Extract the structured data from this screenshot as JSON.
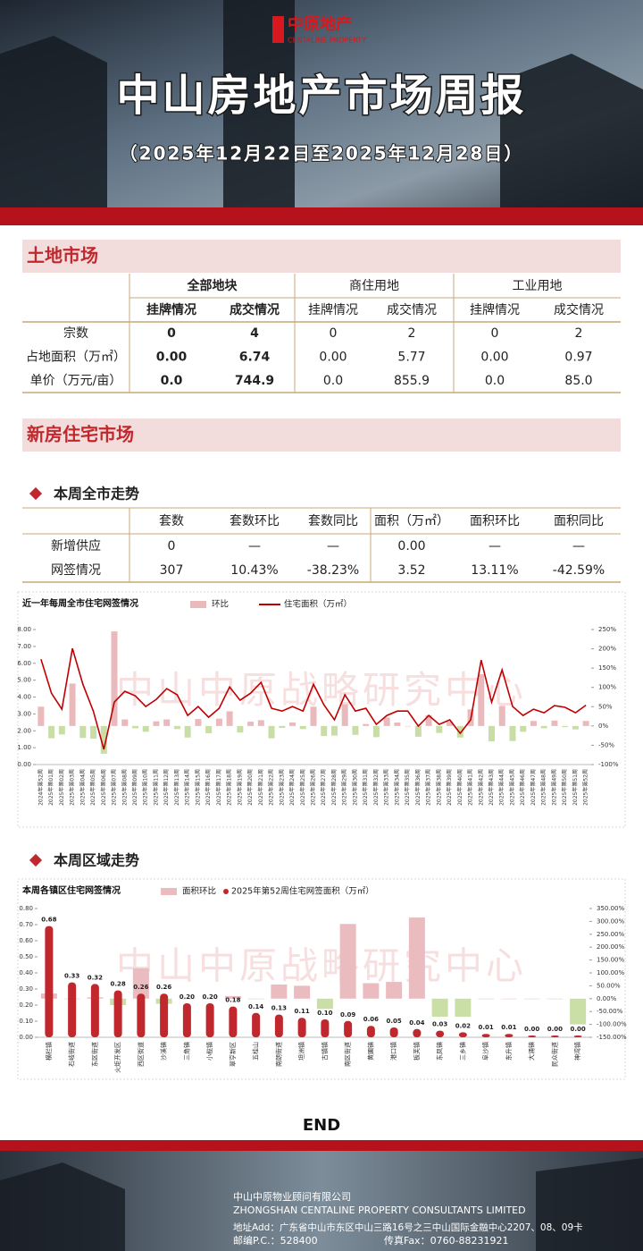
{
  "header": {
    "logo_cn": "中原地产",
    "logo_en": "CENTALINE PROPERTY",
    "title": "中山房地产市场周报",
    "subtitle": "（2025年12月22日至2025年12月28日）"
  },
  "land": {
    "section": "土地市场",
    "group_headers": [
      "全部地块",
      "商住用地",
      "工业用地"
    ],
    "sub_headers": [
      "挂牌情况",
      "成交情况",
      "挂牌情况",
      "成交情况",
      "挂牌情况",
      "成交情况"
    ],
    "rows": [
      {
        "label": "宗数",
        "values": [
          "0",
          "4",
          "0",
          "2",
          "0",
          "2"
        ]
      },
      {
        "label": "占地面积（万㎡）",
        "values": [
          "0.00",
          "6.74",
          "0.00",
          "5.77",
          "0.00",
          "0.97"
        ]
      },
      {
        "label": "单价（万元/亩）",
        "values": [
          "0.0",
          "744.9",
          "0.0",
          "855.9",
          "0.0",
          "85.0"
        ]
      }
    ]
  },
  "new_home": {
    "section": "新房住宅市场",
    "subsection": "本周全市走势",
    "headers": [
      "套数",
      "套数环比",
      "套数同比",
      "面积（万㎡）",
      "面积环比",
      "面积同比"
    ],
    "rows": [
      {
        "label": "新增供应",
        "values": [
          "0",
          "—",
          "—",
          "0.00",
          "—",
          "—"
        ]
      },
      {
        "label": "网签情况",
        "values": [
          "307",
          "10.43%",
          "-38.23%",
          "3.52",
          "13.11%",
          "-42.59%"
        ]
      }
    ]
  },
  "region": {
    "subsection": "本周区域走势"
  },
  "chart_data": [
    {
      "type": "combo",
      "title": "近一年每周全市住宅网签情况",
      "watermark": "中山中原战略研究中心",
      "categories": [
        "2024年第52周",
        "2025年第01周",
        "2025年第02周",
        "2025年第03周",
        "2025年第04周",
        "2025年第05周",
        "2025年第06周",
        "2025年第07周",
        "2025年第08周",
        "2025年第09周",
        "2025年第10周",
        "2025年第11周",
        "2025年第12周",
        "2025年第13周",
        "2025年第14周",
        "2025年第15周",
        "2025年第16周",
        "2025年第17周",
        "2025年第18周",
        "2025年第19周",
        "2025年第20周",
        "2025年第21周",
        "2025年第22周",
        "2025年第23周",
        "2025年第24周",
        "2025年第25周",
        "2025年第26周",
        "2025年第27周",
        "2025年第28周",
        "2025年第29周",
        "2025年第30周",
        "2025年第31周",
        "2025年第32周",
        "2025年第33周",
        "2025年第34周",
        "2025年第35周",
        "2025年第36周",
        "2025年第37周",
        "2025年第38周",
        "2025年第39周",
        "2025年第40周",
        "2025年第41周",
        "2025年第42周",
        "2025年第43周",
        "2025年第44周",
        "2025年第45周",
        "2025年第46周",
        "2025年第47周",
        "2025年第48周",
        "2025年第49周",
        "2025年第50周",
        "2025年第51周",
        "2025年第52周"
      ],
      "series": [
        {
          "name": "环比",
          "kind": "bar",
          "axis": "y2",
          "color": "#e9b9bc",
          "negative_color": "#c9dea6",
          "values": [
            50,
            -32,
            -22,
            110,
            -31,
            -33,
            -72,
            245,
            17,
            -6,
            -15,
            12,
            17,
            -8,
            -30,
            18,
            -19,
            19,
            38,
            -17,
            11,
            15,
            -32,
            -5,
            9,
            -8,
            50,
            -26,
            -25,
            56,
            -23,
            5,
            -29,
            22,
            9,
            0,
            -28,
            28,
            -18,
            11,
            -30,
            43,
            134,
            -40,
            52,
            -39,
            -15,
            13,
            -6,
            14,
            -3,
            -9,
            13
          ]
        },
        {
          "name": "住宅面积（万㎡）",
          "kind": "line",
          "color": "#c00000",
          "values": [
            6.24,
            4.23,
            3.28,
            6.88,
            4.76,
            3.17,
            0.9,
            3.7,
            4.34,
            4.07,
            3.44,
            3.86,
            4.5,
            4.13,
            2.91,
            3.44,
            2.8,
            3.33,
            4.6,
            3.81,
            4.23,
            4.87,
            3.33,
            3.17,
            3.44,
            3.17,
            4.76,
            3.54,
            2.65,
            4.13,
            3.17,
            3.33,
            2.38,
            2.91,
            3.17,
            3.17,
            2.28,
            2.91,
            2.38,
            2.65,
            1.85,
            2.65,
            6.19,
            3.7,
            5.61,
            3.44,
            2.91,
            3.28,
            3.07,
            3.49,
            3.39,
            3.07,
            3.52
          ]
        }
      ],
      "ylim": [
        0,
        8
      ],
      "yticks": [
        {
          "value": 0,
          "label": "0.00"
        },
        {
          "value": 1,
          "label": "1.00"
        },
        {
          "value": 2,
          "label": "2.00"
        },
        {
          "value": 3,
          "label": "3.00"
        },
        {
          "value": 4,
          "label": "4.00"
        },
        {
          "value": 5,
          "label": "5.00"
        },
        {
          "value": 6,
          "label": "6.00"
        },
        {
          "value": 7,
          "label": "7.00"
        },
        {
          "value": 8,
          "label": "8.00"
        }
      ],
      "y2lim": [
        -100,
        250
      ],
      "y2ticks": [
        {
          "value": -100,
          "label": "-100%"
        },
        {
          "value": -50,
          "label": "-50%"
        },
        {
          "value": 0,
          "label": "0%"
        },
        {
          "value": 50,
          "label": "50%"
        },
        {
          "value": 100,
          "label": "100%"
        },
        {
          "value": 150,
          "label": "150%"
        },
        {
          "value": 200,
          "label": "200%"
        },
        {
          "value": 250,
          "label": "250%"
        }
      ]
    },
    {
      "type": "combo",
      "title": "本周各镇区住宅网签情况",
      "watermark": "中山中原战略研究中心",
      "categories": [
        "横栏镇",
        "石岐街道",
        "东区街道",
        "火炬开发区",
        "西区街道",
        "沙溪镇",
        "三角镇",
        "小榄镇",
        "翠亨新区",
        "五桂山",
        "南朗街道",
        "坦洲镇",
        "古镇镇",
        "南区街道",
        "黄圃镇",
        "港口镇",
        "板芙镇",
        "东凤镇",
        "三乡镇",
        "阜沙镇",
        "东升镇",
        "大涌镇",
        "民众街道",
        "神湾镇"
      ],
      "series": [
        {
          "name": "面积环比",
          "kind": "bar",
          "axis": "y2",
          "color": "#ebbcbf",
          "negative_color": "#c9dfa5",
          "values": [
            20,
            0,
            5,
            -25,
            118,
            -20,
            0,
            0,
            10,
            0,
            55,
            50,
            -40,
            290,
            60,
            65,
            315,
            -70,
            -70,
            0,
            0,
            0,
            0,
            -100
          ]
        },
        {
          "name": "2025年第52周住宅网签面积（万㎡）",
          "kind": "column",
          "color": "#c0282d",
          "values": [
            0.68,
            0.33,
            0.32,
            0.28,
            0.26,
            0.26,
            0.2,
            0.2,
            0.18,
            0.14,
            0.13,
            0.11,
            0.1,
            0.09,
            0.06,
            0.05,
            0.04,
            0.03,
            0.02,
            0.01,
            0.01,
            0,
            0,
            0
          ],
          "value_labels": [
            "0.68",
            "0.33",
            "0.32",
            "0.28",
            "0.26",
            "0.26",
            "0.20",
            "0.20",
            "0.18",
            "0.14",
            "0.13",
            "0.11",
            "0.10",
            "0.09",
            "0.06",
            "0.05",
            "0.04",
            "0.03",
            "0.02",
            "0.01",
            "0.01",
            "0.00",
            "0.00",
            "0.00"
          ]
        }
      ],
      "ylim": [
        0,
        0.8
      ],
      "yticks": [
        {
          "value": 0,
          "label": "0.00"
        },
        {
          "value": 0.1,
          "label": "0.10"
        },
        {
          "value": 0.2,
          "label": "0.20"
        },
        {
          "value": 0.3,
          "label": "0.30"
        },
        {
          "value": 0.4,
          "label": "0.40"
        },
        {
          "value": 0.5,
          "label": "0.50"
        },
        {
          "value": 0.6,
          "label": "0.60"
        },
        {
          "value": 0.7,
          "label": "0.70"
        },
        {
          "value": 0.8,
          "label": "0.80"
        }
      ],
      "y2lim": [
        -150,
        350
      ],
      "y2ticks": [
        {
          "value": -150,
          "label": "-150.00%"
        },
        {
          "value": -100,
          "label": "-100.00%"
        },
        {
          "value": -50,
          "label": "-50.00%"
        },
        {
          "value": 0,
          "label": "0.00%"
        },
        {
          "value": 50,
          "label": "50.00%"
        },
        {
          "value": 100,
          "label": "100.00%"
        },
        {
          "value": 150,
          "label": "150.00%"
        },
        {
          "value": 200,
          "label": "200.00%"
        },
        {
          "value": 250,
          "label": "250.00%"
        },
        {
          "value": 300,
          "label": "300.00%"
        },
        {
          "value": 350,
          "label": "350.00%"
        }
      ]
    }
  ],
  "end": "END",
  "footer": {
    "company_cn": "中山中原物业顾问有限公司",
    "company_en": "ZHONGSHAN CENTALINE PROPERTY CONSULTANTS LIMITED",
    "address": "地址Add：广东省中山市东区中山三路16号之三中山国际金融中心2207、08、09卡",
    "postcode": "邮编P.C.：528400",
    "fax": "传真Fax：0760-88231921"
  }
}
